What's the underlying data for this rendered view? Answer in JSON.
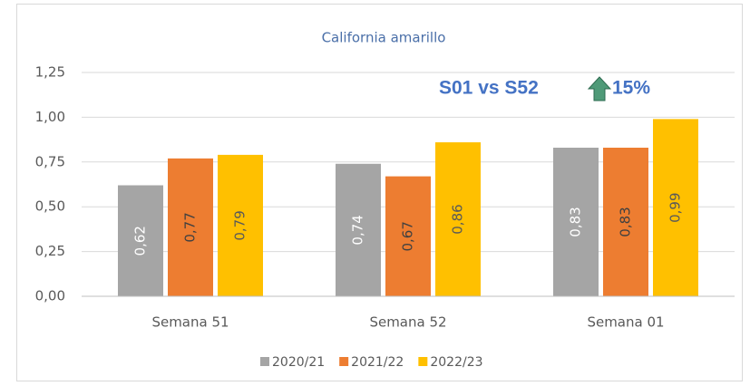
{
  "chart_data": {
    "type": "bar",
    "title": "California amarillo",
    "categories": [
      "Semana 51",
      "Semana 52",
      "Semana 01"
    ],
    "series": [
      {
        "name": "2020/21",
        "color": "#a5a5a5",
        "values": [
          0.62,
          0.74,
          0.83
        ],
        "value_labels": [
          "0,62",
          "0,74",
          "0,83"
        ]
      },
      {
        "name": "2021/22",
        "color": "#ed7d31",
        "values": [
          0.77,
          0.67,
          0.83
        ],
        "value_labels": [
          "0,77",
          "0,67",
          "0,83"
        ]
      },
      {
        "name": "2022/23",
        "color": "#ffc000",
        "values": [
          0.79,
          0.86,
          0.99
        ],
        "value_labels": [
          "0,79",
          "0,86",
          "0,99"
        ]
      }
    ],
    "ylim": [
      0,
      1.25
    ],
    "yticks": [
      {
        "value": 0,
        "label": "0,00"
      },
      {
        "value": 0.25,
        "label": "0,25"
      },
      {
        "value": 0.5,
        "label": "0,50"
      },
      {
        "value": 0.75,
        "label": "0,75"
      },
      {
        "value": 1,
        "label": "1,00"
      },
      {
        "value": 1.25,
        "label": "1,25"
      }
    ],
    "grid": true,
    "legend": "bottom",
    "annotations": [
      "S01 vs S52",
      "15%"
    ]
  }
}
